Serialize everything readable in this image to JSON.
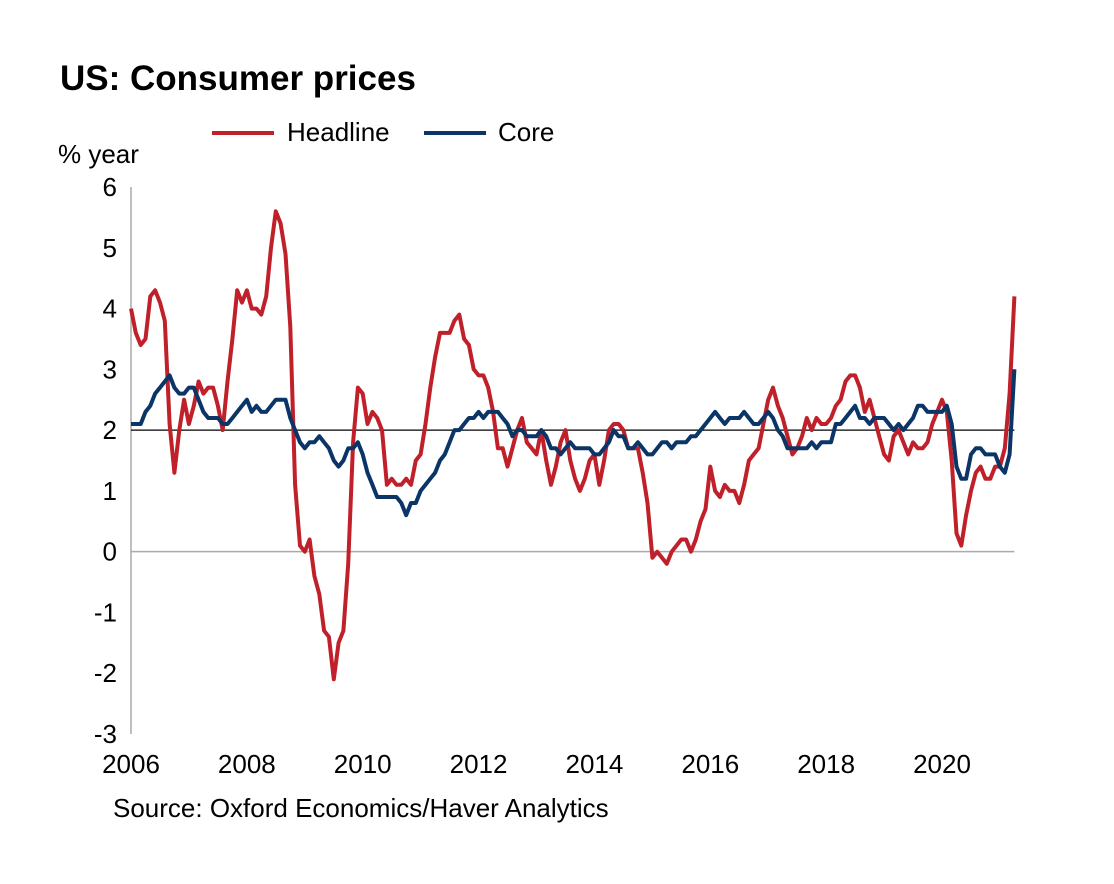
{
  "chart_data": {
    "type": "line",
    "title": "US: Consumer prices",
    "ylabel": "% year",
    "source": "Source: Oxford Economics/Haver Analytics",
    "ylim": [
      -3,
      6
    ],
    "yticks": [
      "6",
      "5",
      "4",
      "3",
      "2",
      "1",
      "0",
      "-1",
      "-2",
      "-3"
    ],
    "xticks": [
      "2006",
      "2008",
      "2010",
      "2012",
      "2014",
      "2016",
      "2018",
      "2020"
    ],
    "x_start": "2006-01",
    "x_frequency": "monthly",
    "reference_lines": [
      0,
      2
    ],
    "legend_position": "top",
    "colors": {
      "Headline": "#C0202A",
      "Core": "#0A3566"
    },
    "series": [
      {
        "name": "Headline",
        "values": [
          4.0,
          3.6,
          3.4,
          3.5,
          4.2,
          4.3,
          4.1,
          3.8,
          2.1,
          1.3,
          2.0,
          2.5,
          2.1,
          2.4,
          2.8,
          2.6,
          2.7,
          2.7,
          2.4,
          2.0,
          2.8,
          3.5,
          4.3,
          4.1,
          4.3,
          4.0,
          4.0,
          3.9,
          4.2,
          5.0,
          5.6,
          5.4,
          4.9,
          3.7,
          1.1,
          0.1,
          0.0,
          0.2,
          -0.4,
          -0.7,
          -1.3,
          -1.4,
          -2.1,
          -1.5,
          -1.3,
          -0.2,
          1.8,
          2.7,
          2.6,
          2.1,
          2.3,
          2.2,
          2.0,
          1.1,
          1.2,
          1.1,
          1.1,
          1.2,
          1.1,
          1.5,
          1.6,
          2.1,
          2.7,
          3.2,
          3.6,
          3.6,
          3.6,
          3.8,
          3.9,
          3.5,
          3.4,
          3.0,
          2.9,
          2.9,
          2.7,
          2.3,
          1.7,
          1.7,
          1.4,
          1.7,
          2.0,
          2.2,
          1.8,
          1.7,
          1.6,
          2.0,
          1.5,
          1.1,
          1.4,
          1.8,
          2.0,
          1.5,
          1.2,
          1.0,
          1.2,
          1.5,
          1.6,
          1.1,
          1.5,
          2.0,
          2.1,
          2.1,
          2.0,
          1.7,
          1.7,
          1.7,
          1.3,
          0.8,
          -0.1,
          0.0,
          -0.1,
          -0.2,
          0.0,
          0.1,
          0.2,
          0.2,
          0.0,
          0.2,
          0.5,
          0.7,
          1.4,
          1.0,
          0.9,
          1.1,
          1.0,
          1.0,
          0.8,
          1.1,
          1.5,
          1.6,
          1.7,
          2.1,
          2.5,
          2.7,
          2.4,
          2.2,
          1.9,
          1.6,
          1.7,
          1.9,
          2.2,
          2.0,
          2.2,
          2.1,
          2.1,
          2.2,
          2.4,
          2.5,
          2.8,
          2.9,
          2.9,
          2.7,
          2.3,
          2.5,
          2.2,
          1.9,
          1.6,
          1.5,
          1.9,
          2.0,
          1.8,
          1.6,
          1.8,
          1.7,
          1.7,
          1.8,
          2.1,
          2.3,
          2.5,
          2.3,
          1.5,
          0.3,
          0.1,
          0.6,
          1.0,
          1.3,
          1.4,
          1.2,
          1.2,
          1.4,
          1.4,
          1.7,
          2.6,
          4.2
        ]
      },
      {
        "name": "Core",
        "values": [
          2.1,
          2.1,
          2.1,
          2.3,
          2.4,
          2.6,
          2.7,
          2.8,
          2.9,
          2.7,
          2.6,
          2.6,
          2.7,
          2.7,
          2.5,
          2.3,
          2.2,
          2.2,
          2.2,
          2.1,
          2.1,
          2.2,
          2.3,
          2.4,
          2.5,
          2.3,
          2.4,
          2.3,
          2.3,
          2.4,
          2.5,
          2.5,
          2.5,
          2.2,
          2.0,
          1.8,
          1.7,
          1.8,
          1.8,
          1.9,
          1.8,
          1.7,
          1.5,
          1.4,
          1.5,
          1.7,
          1.7,
          1.8,
          1.6,
          1.3,
          1.1,
          0.9,
          0.9,
          0.9,
          0.9,
          0.9,
          0.8,
          0.6,
          0.8,
          0.8,
          1.0,
          1.1,
          1.2,
          1.3,
          1.5,
          1.6,
          1.8,
          2.0,
          2.0,
          2.1,
          2.2,
          2.2,
          2.3,
          2.2,
          2.3,
          2.3,
          2.3,
          2.2,
          2.1,
          1.9,
          2.0,
          2.0,
          1.9,
          1.9,
          1.9,
          2.0,
          1.9,
          1.7,
          1.7,
          1.6,
          1.7,
          1.8,
          1.7,
          1.7,
          1.7,
          1.7,
          1.6,
          1.6,
          1.7,
          1.8,
          2.0,
          1.9,
          1.9,
          1.7,
          1.7,
          1.8,
          1.7,
          1.6,
          1.6,
          1.7,
          1.8,
          1.8,
          1.7,
          1.8,
          1.8,
          1.8,
          1.9,
          1.9,
          2.0,
          2.1,
          2.2,
          2.3,
          2.2,
          2.1,
          2.2,
          2.2,
          2.2,
          2.3,
          2.2,
          2.1,
          2.1,
          2.2,
          2.3,
          2.2,
          2.0,
          1.9,
          1.7,
          1.7,
          1.7,
          1.7,
          1.7,
          1.8,
          1.7,
          1.8,
          1.8,
          1.8,
          2.1,
          2.1,
          2.2,
          2.3,
          2.4,
          2.2,
          2.2,
          2.1,
          2.2,
          2.2,
          2.2,
          2.1,
          2.0,
          2.1,
          2.0,
          2.1,
          2.2,
          2.4,
          2.4,
          2.3,
          2.3,
          2.3,
          2.3,
          2.4,
          2.1,
          1.4,
          1.2,
          1.2,
          1.6,
          1.7,
          1.7,
          1.6,
          1.6,
          1.6,
          1.4,
          1.3,
          1.6,
          3.0
        ]
      }
    ]
  }
}
